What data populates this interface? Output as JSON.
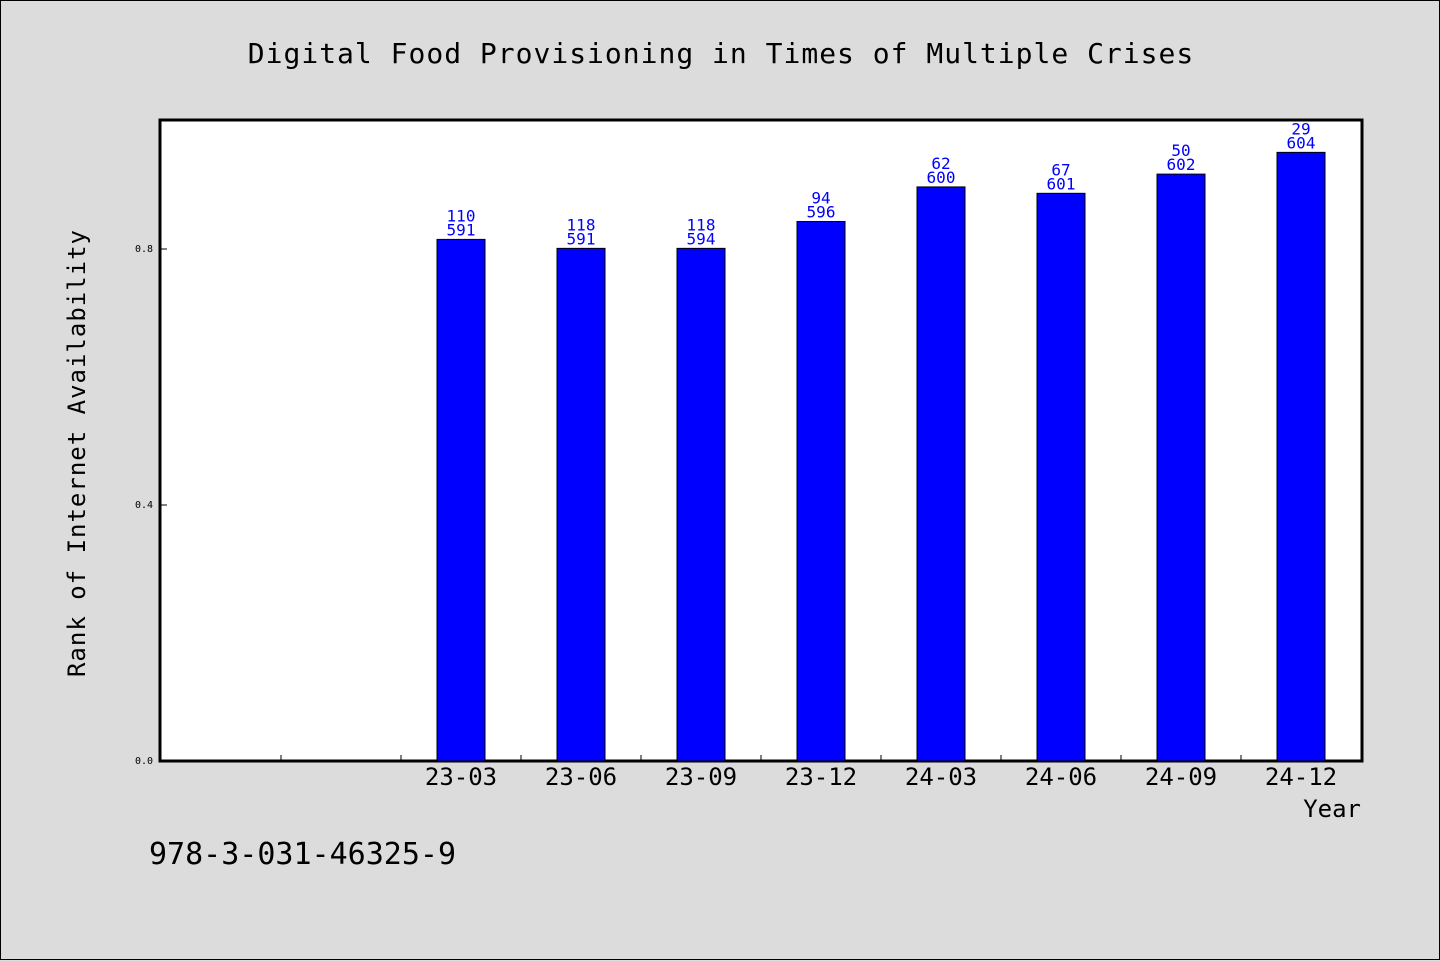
{
  "chart_data": {
    "type": "bar",
    "title": "Digital Food Provisioning in Times of Multiple Crises",
    "xlabel": "Year",
    "ylabel": "Rank of Internet Availability",
    "ylim": [
      0,
      1
    ],
    "yticks": [
      "0.0",
      "0.4",
      "0.8"
    ],
    "ytick_values": [
      0,
      0.4,
      0.8
    ],
    "categories": [
      "23-03",
      "23-06",
      "23-09",
      "23-12",
      "24-03",
      "24-06",
      "24-09",
      "24-12"
    ],
    "values": [
      0.815,
      0.801,
      0.801,
      0.843,
      0.897,
      0.887,
      0.917,
      0.951
    ],
    "labels_top": [
      "110",
      "118",
      "118",
      "94",
      "62",
      "67",
      "50",
      "29"
    ],
    "labels_bottom": [
      "591",
      "591",
      "594",
      "596",
      "600",
      "601",
      "602",
      "604"
    ],
    "bar_color": "#0000ff",
    "label_color": "#0000ff",
    "grid": false,
    "legend": "none"
  },
  "footer": {
    "isbn": "978-3-031-46325-9"
  }
}
